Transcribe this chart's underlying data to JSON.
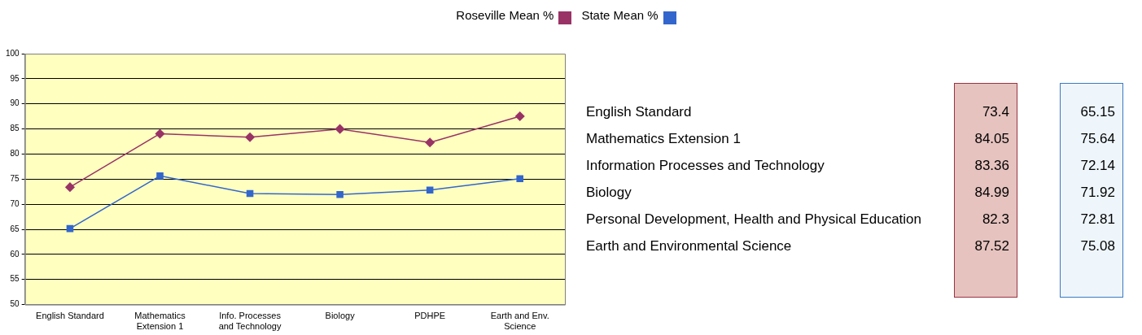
{
  "chart_data": [
    {
      "type": "line",
      "categories": [
        "English Standard",
        "Mathematics Extension 1",
        "Info. Processes and Technology",
        "Biology",
        "PDHPE",
        "Earth and Env. Science"
      ],
      "series": [
        {
          "name": "Roseville Mean %",
          "color": "#993366",
          "marker": "diamond",
          "values": [
            73.4,
            84.05,
            83.36,
            84.99,
            82.3,
            87.52
          ]
        },
        {
          "name": "State Mean %",
          "color": "#3366cc",
          "marker": "square",
          "values": [
            65.15,
            75.64,
            72.14,
            71.92,
            72.81,
            75.08
          ]
        }
      ],
      "ylim": [
        50,
        100
      ],
      "yticks": [
        50,
        55,
        60,
        65,
        70,
        75,
        80,
        85,
        90,
        95,
        100
      ],
      "grid": "y",
      "legend": "top"
    },
    {
      "type": "other",
      "data_labels": true,
      "categories": [
        "English Standard",
        "Mathematics Extension 1",
        "Information Processes and Technology",
        "Biology",
        "Personal Development, Health and Physical Education",
        "Earth and Environmental Science"
      ],
      "series": [
        {
          "color": "#e6c3bf",
          "values": [
            73.4,
            84.05,
            83.36,
            84.99,
            82.3,
            87.52
          ]
        },
        {
          "color": "#eef6fc",
          "values": [
            65.15,
            75.64,
            72.14,
            71.92,
            72.81,
            75.08
          ]
        }
      ]
    }
  ]
}
